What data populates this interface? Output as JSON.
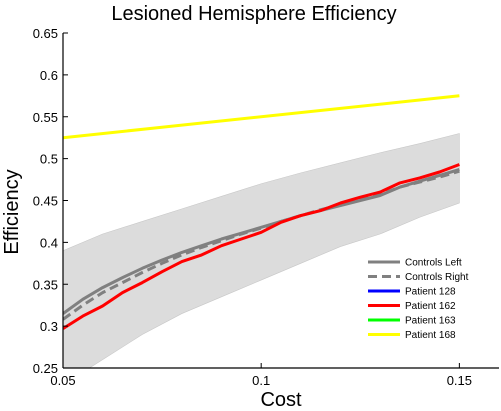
{
  "chart_data": {
    "type": "line",
    "title": "Lesioned Hemisphere Efficiency",
    "xlabel": "Cost",
    "ylabel": "Efficiency",
    "xlim": [
      0.05,
      0.16
    ],
    "ylim": [
      0.25,
      0.65
    ],
    "xticks": [
      0.05,
      0.1,
      0.15
    ],
    "xtick_labels": [
      "0.05",
      "0.1",
      "0.15"
    ],
    "yticks": [
      0.25,
      0.3,
      0.35,
      0.4,
      0.45,
      0.5,
      0.55,
      0.6,
      0.65
    ],
    "ytick_labels": [
      "0.25",
      "0.3",
      "0.35",
      "0.4",
      "0.45",
      "0.5",
      "0.55",
      "0.6",
      "0.65"
    ],
    "grid": false,
    "legend_position": "bottom-right",
    "band": {
      "color": "#dcdcdc",
      "x": [
        0.05,
        0.06,
        0.07,
        0.08,
        0.09,
        0.1,
        0.11,
        0.12,
        0.13,
        0.14,
        0.15
      ],
      "lower": [
        0.23,
        0.26,
        0.29,
        0.315,
        0.335,
        0.355,
        0.375,
        0.395,
        0.41,
        0.43,
        0.447
      ],
      "upper": [
        0.39,
        0.41,
        0.425,
        0.44,
        0.455,
        0.47,
        0.483,
        0.495,
        0.507,
        0.518,
        0.53
      ]
    },
    "series": [
      {
        "name": "Controls Left",
        "color": "#808080",
        "style": "solid",
        "x": [
          0.05,
          0.055,
          0.06,
          0.065,
          0.07,
          0.075,
          0.08,
          0.085,
          0.09,
          0.095,
          0.1,
          0.105,
          0.11,
          0.115,
          0.12,
          0.125,
          0.13,
          0.135,
          0.14,
          0.145,
          0.15
        ],
        "values": [
          0.315,
          0.332,
          0.346,
          0.358,
          0.369,
          0.379,
          0.388,
          0.396,
          0.404,
          0.411,
          0.418,
          0.425,
          0.432,
          0.438,
          0.444,
          0.45,
          0.456,
          0.466,
          0.473,
          0.48,
          0.487
        ]
      },
      {
        "name": "Controls Right",
        "color": "#808080",
        "style": "dashed",
        "x": [
          0.05,
          0.055,
          0.06,
          0.065,
          0.07,
          0.075,
          0.08,
          0.085,
          0.09,
          0.095,
          0.1,
          0.105,
          0.11,
          0.115,
          0.12,
          0.125,
          0.13,
          0.135,
          0.14,
          0.145,
          0.15
        ],
        "values": [
          0.308,
          0.325,
          0.34,
          0.352,
          0.364,
          0.375,
          0.385,
          0.394,
          0.402,
          0.41,
          0.417,
          0.425,
          0.432,
          0.439,
          0.445,
          0.451,
          0.457,
          0.466,
          0.472,
          0.478,
          0.485
        ]
      },
      {
        "name": "Patient 128",
        "color": "#0000ff",
        "style": "solid",
        "x": [],
        "values": []
      },
      {
        "name": "Patient 162",
        "color": "#ff0000",
        "style": "solid",
        "x": [
          0.05,
          0.055,
          0.06,
          0.065,
          0.07,
          0.075,
          0.08,
          0.085,
          0.09,
          0.095,
          0.1,
          0.105,
          0.11,
          0.115,
          0.12,
          0.125,
          0.13,
          0.135,
          0.14,
          0.145,
          0.15
        ],
        "values": [
          0.297,
          0.312,
          0.324,
          0.34,
          0.352,
          0.365,
          0.377,
          0.385,
          0.396,
          0.404,
          0.412,
          0.424,
          0.432,
          0.438,
          0.447,
          0.454,
          0.46,
          0.471,
          0.477,
          0.484,
          0.493
        ]
      },
      {
        "name": "Patient 163",
        "color": "#00ff00",
        "style": "solid",
        "x": [],
        "values": []
      },
      {
        "name": "Patient 168",
        "color": "#ffff00",
        "style": "solid",
        "x": [
          0.05,
          0.15
        ],
        "values": [
          0.525,
          0.575
        ]
      }
    ]
  }
}
